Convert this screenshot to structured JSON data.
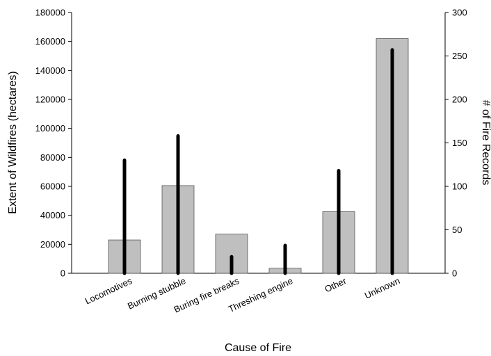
{
  "chart_data": {
    "type": "bar",
    "title": "",
    "xlabel": "Cause of Fire",
    "ylabel": "Extent of Wildfires (hectares)",
    "y2label": "# of Fire Records",
    "categories": [
      "Locomotives",
      "Burning stubble",
      "Buring fire breaks",
      "Threshing engine",
      "Other",
      "Unknown"
    ],
    "ylim": [
      0,
      180000
    ],
    "y2lim": [
      0,
      300
    ],
    "yticks": [
      0,
      20000,
      40000,
      60000,
      80000,
      100000,
      120000,
      140000,
      160000,
      180000
    ],
    "y2ticks": [
      0,
      50,
      100,
      150,
      200,
      250,
      300
    ],
    "series": [
      {
        "axis": "left",
        "mark": "bar",
        "color": "#bfbfbf",
        "values": [
          23000,
          60500,
          27000,
          3500,
          42500,
          162000
        ]
      },
      {
        "axis": "right",
        "mark": "thick-line",
        "color": "#000000",
        "values": [
          130,
          158,
          19,
          32,
          118,
          257
        ]
      }
    ],
    "grid": false,
    "legend": "none"
  }
}
